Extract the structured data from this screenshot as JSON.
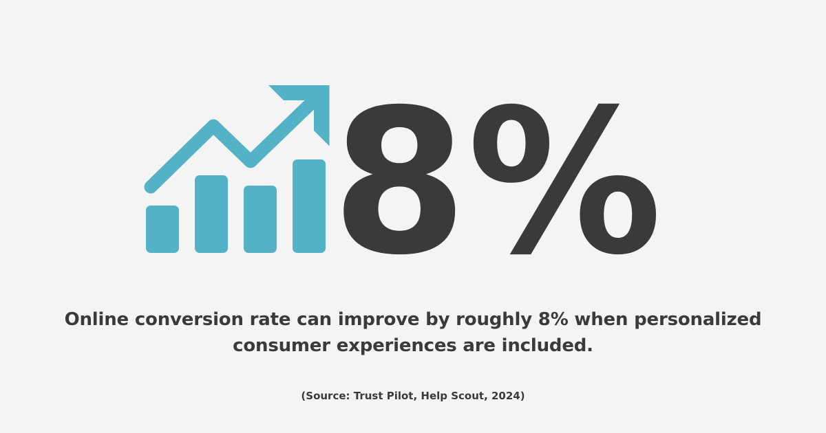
{
  "colors": {
    "accent": "#53b2c6",
    "text": "#3b3939",
    "background": "#f4f4f4"
  },
  "icon": {
    "name": "bar-chart-trend-up-icon"
  },
  "stat": {
    "value": "8%"
  },
  "headline": {
    "text": "Online conversion rate can improve by roughly 8% when personalized consumer experiences are included."
  },
  "source": {
    "text": "(Source: Trust Pilot, Help Scout, 2024)"
  }
}
